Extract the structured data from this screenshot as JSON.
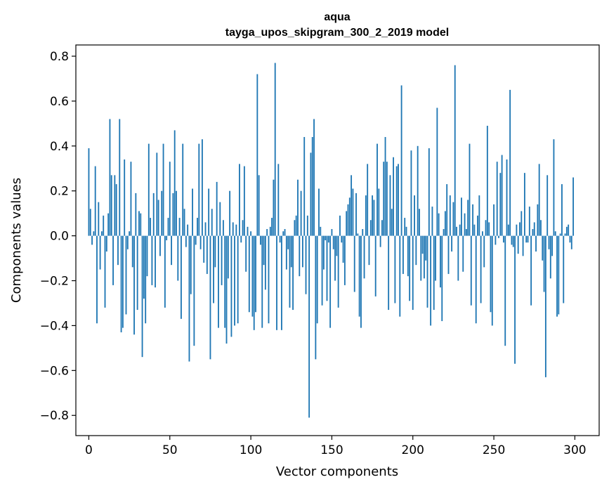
{
  "chart_data": {
    "type": "bar",
    "title": "aqua",
    "subtitle": "tayga_upos_skipgram_300_2_2019 model",
    "xlabel": "Vector components",
    "ylabel": "Components values",
    "xlim": [
      -8,
      315
    ],
    "ylim": [
      -0.89,
      0.85
    ],
    "xticks": [
      0,
      50,
      100,
      150,
      200,
      250,
      300
    ],
    "xtick_labels": [
      "0",
      "50",
      "100",
      "150",
      "200",
      "250",
      "300"
    ],
    "yticks": [
      -0.8,
      -0.6,
      -0.4,
      -0.2,
      0.0,
      0.2,
      0.4,
      0.6,
      0.8
    ],
    "ytick_labels": [
      "−0.8",
      "−0.6",
      "−0.4",
      "−0.2",
      "0.0",
      "0.2",
      "0.4",
      "0.6",
      "0.8"
    ],
    "grid": false,
    "bar_color": "#1f77b4",
    "bar_width": 0.8,
    "x": "0..299",
    "values": [
      0.39,
      0.12,
      -0.04,
      0.02,
      0.31,
      -0.39,
      0.15,
      -0.15,
      0.02,
      0.09,
      -0.32,
      -0.07,
      0.1,
      0.52,
      0.27,
      -0.22,
      0.27,
      0.23,
      -0.13,
      0.52,
      -0.43,
      -0.41,
      0.34,
      -0.35,
      -0.06,
      0.02,
      0.33,
      -0.14,
      -0.44,
      0.19,
      -0.33,
      0.11,
      0.1,
      -0.54,
      -0.28,
      -0.39,
      -0.18,
      0.41,
      0.08,
      -0.22,
      0.19,
      -0.23,
      0.37,
      0.16,
      -0.09,
      0.2,
      0.41,
      -0.32,
      -0.02,
      0.08,
      0.33,
      -0.13,
      0.19,
      0.47,
      0.2,
      -0.2,
      0.08,
      -0.37,
      0.41,
      0.12,
      -0.05,
      0.05,
      -0.56,
      -0.26,
      0.21,
      -0.49,
      -0.04,
      0.08,
      0.41,
      -0.06,
      0.43,
      -0.12,
      0.06,
      -0.17,
      0.21,
      -0.55,
      0.12,
      -0.3,
      -0.14,
      0.24,
      -0.41,
      0.15,
      -0.22,
      0.07,
      -0.41,
      -0.48,
      -0.19,
      0.2,
      -0.45,
      0.06,
      -0.4,
      0.05,
      -0.39,
      0.32,
      -0.03,
      0.07,
      0.31,
      -0.16,
      0.04,
      -0.34,
      0.02,
      -0.36,
      -0.42,
      -0.34,
      0.72,
      0.27,
      -0.04,
      -0.41,
      -0.13,
      -0.24,
      0.03,
      -0.39,
      0.04,
      0.08,
      0.25,
      0.77,
      -0.42,
      0.32,
      -0.03,
      -0.42,
      0.02,
      0.03,
      -0.15,
      -0.06,
      -0.32,
      -0.14,
      -0.33,
      0.07,
      0.09,
      0.25,
      -0.18,
      0.2,
      -0.14,
      0.44,
      -0.26,
      0.09,
      -0.81,
      0.37,
      0.44,
      0.52,
      -0.55,
      -0.39,
      0.21,
      0.04,
      -0.31,
      -0.15,
      -0.02,
      -0.29,
      -0.03,
      -0.41,
      0.03,
      -0.06,
      -0.2,
      -0.09,
      -0.32,
      0.09,
      -0.03,
      -0.12,
      -0.22,
      0.11,
      0.14,
      0.17,
      0.27,
      0.21,
      -0.25,
      0.19,
      0.01,
      -0.36,
      -0.41,
      0.03,
      -0.19,
      0.18,
      0.32,
      -0.13,
      0.07,
      0.18,
      0.16,
      -0.27,
      0.41,
      0.21,
      -0.05,
      0.07,
      0.33,
      0.44,
      0.33,
      -0.33,
      0.27,
      0.12,
      0.35,
      -0.3,
      0.31,
      0.32,
      -0.36,
      0.67,
      -0.17,
      0.08,
      0.04,
      -0.18,
      -0.29,
      0.38,
      -0.33,
      0.18,
      -0.13,
      0.4,
      0.12,
      -0.2,
      -0.08,
      -0.19,
      -0.11,
      -0.32,
      0.39,
      -0.4,
      0.13,
      -0.33,
      -0.2,
      0.57,
      0.1,
      -0.23,
      -0.38,
      0.03,
      0.11,
      0.23,
      -0.17,
      0.18,
      -0.07,
      0.15,
      0.76,
      0.04,
      -0.2,
      0.05,
      0.17,
      -0.16,
      0.1,
      0.03,
      0.16,
      0.41,
      -0.31,
      0.14,
      0.05,
      -0.39,
      0.09,
      0.18,
      -0.3,
      0.02,
      -0.14,
      0.07,
      0.49,
      0.06,
      -0.34,
      -0.4,
      0.14,
      -0.04,
      0.33,
      -0.01,
      0.28,
      0.36,
      -0.03,
      -0.49,
      0.34,
      0.05,
      0.65,
      -0.04,
      -0.05,
      -0.57,
      0.05,
      -0.08,
      0.06,
      0.11,
      -0.09,
      0.28,
      -0.03,
      -0.03,
      0.13,
      -0.31,
      0.03,
      0.06,
      -0.07,
      0.14,
      0.32,
      0.07,
      -0.11,
      -0.25,
      -0.63,
      0.27,
      -0.06,
      -0.19,
      -0.09,
      0.43,
      0.02,
      -0.36,
      -0.35,
      0.01,
      0.23,
      -0.3,
      0.01,
      0.04,
      0.05,
      -0.03,
      -0.06,
      0.26
    ]
  }
}
